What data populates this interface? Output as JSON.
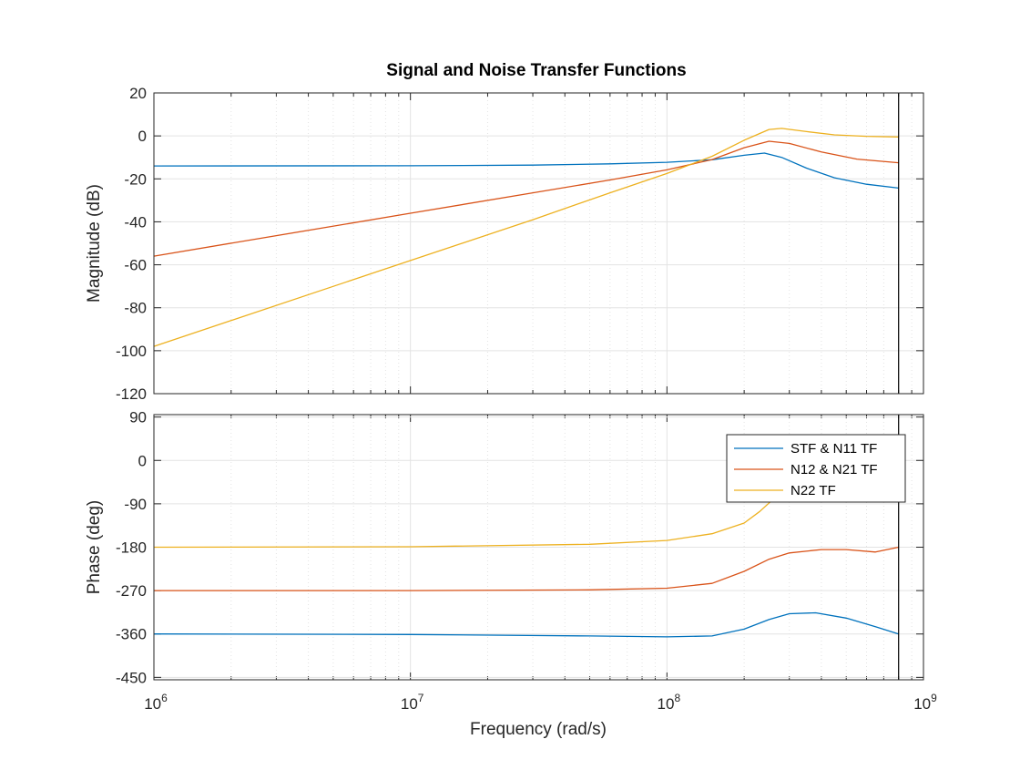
{
  "chart_data": {
    "title": "Signal and Noise Transfer Functions",
    "type": "line",
    "xscale": "log",
    "xlabel": "Frequency  (rad/s)",
    "xlim": [
      1000000,
      1000000000
    ],
    "x_tick_labels": [
      {
        "base": "10",
        "exp": "6"
      },
      {
        "base": "10",
        "exp": "7"
      },
      {
        "base": "10",
        "exp": "8"
      },
      {
        "base": "10",
        "exp": "9"
      }
    ],
    "x_tick_values": [
      1000000,
      10000000,
      100000000,
      1000000000
    ],
    "nyquist_marker_x": 800000000,
    "grid": true,
    "colors": {
      "stf": "#0072BD",
      "n12": "#D95319",
      "n22": "#EDB120",
      "grid": "#e3e3e3",
      "axis": "#262626",
      "marker": "#000000"
    },
    "legend": {
      "placement": "upper-right of phase panel",
      "entries": [
        "STF & N11 TF",
        "N12 & N21 TF",
        "N22 TF"
      ]
    },
    "panels": [
      {
        "name": "magnitude",
        "ylabel": "Magnitude (dB)",
        "ylim": [
          -120,
          20
        ],
        "yticks": [
          20,
          0,
          -20,
          -40,
          -60,
          -80,
          -100,
          -120
        ],
        "ytick_labels": [
          "20",
          "0",
          "-20",
          "-40",
          "-60",
          "-80",
          "-100",
          "-120"
        ],
        "series": [
          {
            "name": "STF & N11 TF",
            "color": "#0072BD",
            "points": [
              [
                1000000,
                -14
              ],
              [
                10000000,
                -13.9
              ],
              [
                30000000,
                -13.6
              ],
              [
                60000000,
                -13
              ],
              [
                100000000,
                -12.3
              ],
              [
                150000000,
                -11.1
              ],
              [
                200000000,
                -9
              ],
              [
                240000000,
                -8
              ],
              [
                280000000,
                -10
              ],
              [
                350000000,
                -15
              ],
              [
                450000000,
                -19.5
              ],
              [
                600000000,
                -22.5
              ],
              [
                800000000,
                -24.3
              ]
            ]
          },
          {
            "name": "N12 & N21 TF",
            "color": "#D95319",
            "points": [
              [
                1000000,
                -56
              ],
              [
                10000000,
                -36
              ],
              [
                30000000,
                -26.5
              ],
              [
                60000000,
                -20.5
              ],
              [
                100000000,
                -15.8
              ],
              [
                150000000,
                -11
              ],
              [
                200000000,
                -5.5
              ],
              [
                250000000,
                -2.5
              ],
              [
                300000000,
                -3.5
              ],
              [
                400000000,
                -7.5
              ],
              [
                550000000,
                -10.8
              ],
              [
                800000000,
                -12.5
              ]
            ]
          },
          {
            "name": "N22 TF",
            "color": "#EDB120",
            "points": [
              [
                1000000,
                -98
              ],
              [
                10000000,
                -58
              ],
              [
                30000000,
                -39
              ],
              [
                60000000,
                -26.5
              ],
              [
                100000000,
                -17.5
              ],
              [
                150000000,
                -9.5
              ],
              [
                200000000,
                -2
              ],
              [
                250000000,
                3
              ],
              [
                280000000,
                3.5
              ],
              [
                350000000,
                2
              ],
              [
                450000000,
                0.5
              ],
              [
                600000000,
                -0.2
              ],
              [
                800000000,
                -0.5
              ]
            ]
          }
        ]
      },
      {
        "name": "phase",
        "ylabel": "Phase (deg)",
        "ylim": [
          -455,
          95
        ],
        "yticks": [
          90,
          0,
          -90,
          -180,
          -270,
          -360,
          -450
        ],
        "ytick_labels": [
          "90",
          "0",
          "-90",
          "-180",
          "-270",
          "-360",
          "-450"
        ],
        "series": [
          {
            "name": "STF & N11 TF",
            "color": "#0072BD",
            "points": [
              [
                1000000,
                -360
              ],
              [
                10000000,
                -361
              ],
              [
                50000000,
                -364
              ],
              [
                100000000,
                -366
              ],
              [
                150000000,
                -364
              ],
              [
                200000000,
                -350
              ],
              [
                250000000,
                -330
              ],
              [
                300000000,
                -318
              ],
              [
                380000000,
                -316
              ],
              [
                500000000,
                -327
              ],
              [
                650000000,
                -345
              ],
              [
                800000000,
                -360
              ]
            ]
          },
          {
            "name": "N12 & N21 TF",
            "color": "#D95319",
            "points": [
              [
                1000000,
                -270
              ],
              [
                10000000,
                -270
              ],
              [
                50000000,
                -268.5
              ],
              [
                100000000,
                -265
              ],
              [
                150000000,
                -255
              ],
              [
                200000000,
                -230
              ],
              [
                250000000,
                -205
              ],
              [
                300000000,
                -192
              ],
              [
                400000000,
                -185
              ],
              [
                500000000,
                -185
              ],
              [
                650000000,
                -190
              ],
              [
                800000000,
                -180
              ]
            ]
          },
          {
            "name": "N22 TF",
            "color": "#EDB120",
            "points": [
              [
                1000000,
                -180
              ],
              [
                10000000,
                -179
              ],
              [
                50000000,
                -174
              ],
              [
                100000000,
                -166
              ],
              [
                150000000,
                -152
              ],
              [
                200000000,
                -130
              ],
              [
                230000000,
                -106
              ],
              [
                260000000,
                -80
              ]
            ]
          }
        ]
      }
    ]
  }
}
